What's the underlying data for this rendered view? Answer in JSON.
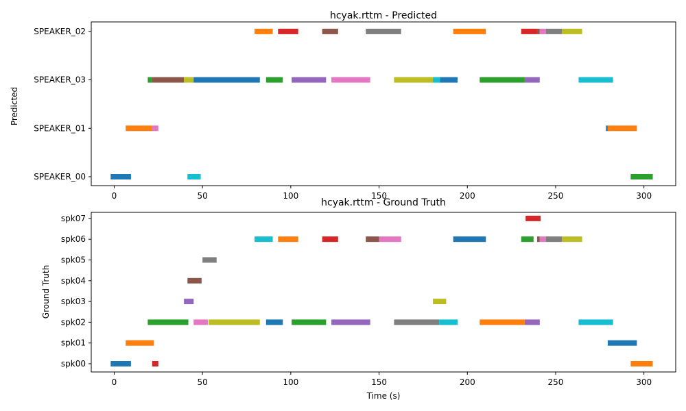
{
  "chart_data": [
    {
      "type": "timeline",
      "title": "hcyak.rttm - Predicted",
      "ylabel": "Predicted",
      "xlabel": "",
      "xlim": [
        -13,
        318
      ],
      "x_ticks": [
        0,
        50,
        100,
        150,
        200,
        250,
        300
      ],
      "rows": [
        "SPEAKER_00",
        "SPEAKER_01",
        "SPEAKER_03",
        "SPEAKER_02"
      ],
      "segments": [
        {
          "row": "SPEAKER_02",
          "start": 79.5,
          "end": 89.8,
          "color": "#ff7f0e"
        },
        {
          "row": "SPEAKER_02",
          "start": 92.8,
          "end": 104.2,
          "color": "#d62728"
        },
        {
          "row": "SPEAKER_02",
          "start": 117.8,
          "end": 126.8,
          "color": "#8c564b"
        },
        {
          "row": "SPEAKER_02",
          "start": 142.5,
          "end": 162.5,
          "color": "#7f7f7f"
        },
        {
          "row": "SPEAKER_02",
          "start": 192.0,
          "end": 210.5,
          "color": "#ff7f0e"
        },
        {
          "row": "SPEAKER_02",
          "start": 230.5,
          "end": 239.5,
          "color": "#d62728"
        },
        {
          "row": "SPEAKER_02",
          "start": 239.5,
          "end": 241.0,
          "color": "#8c564b"
        },
        {
          "row": "SPEAKER_02",
          "start": 241.0,
          "end": 244.5,
          "color": "#e377c2"
        },
        {
          "row": "SPEAKER_02",
          "start": 244.5,
          "end": 253.5,
          "color": "#7f7f7f"
        },
        {
          "row": "SPEAKER_02",
          "start": 253.5,
          "end": 265.0,
          "color": "#bcbd22"
        },
        {
          "row": "SPEAKER_03",
          "start": 19.0,
          "end": 21.5,
          "color": "#2ca02c"
        },
        {
          "row": "SPEAKER_03",
          "start": 21.5,
          "end": 39.5,
          "color": "#8c564b"
        },
        {
          "row": "SPEAKER_03",
          "start": 39.5,
          "end": 45.0,
          "color": "#bcbd22"
        },
        {
          "row": "SPEAKER_03",
          "start": 45.0,
          "end": 82.5,
          "color": "#1f77b4"
        },
        {
          "row": "SPEAKER_03",
          "start": 86.0,
          "end": 95.5,
          "color": "#2ca02c"
        },
        {
          "row": "SPEAKER_03",
          "start": 100.5,
          "end": 120.0,
          "color": "#9467bd"
        },
        {
          "row": "SPEAKER_03",
          "start": 123.0,
          "end": 145.0,
          "color": "#e377c2"
        },
        {
          "row": "SPEAKER_03",
          "start": 158.5,
          "end": 180.5,
          "color": "#bcbd22"
        },
        {
          "row": "SPEAKER_03",
          "start": 180.5,
          "end": 184.5,
          "color": "#17becf"
        },
        {
          "row": "SPEAKER_03",
          "start": 184.5,
          "end": 194.5,
          "color": "#1f77b4"
        },
        {
          "row": "SPEAKER_03",
          "start": 207.0,
          "end": 232.5,
          "color": "#2ca02c"
        },
        {
          "row": "SPEAKER_03",
          "start": 232.5,
          "end": 241.0,
          "color": "#9467bd"
        },
        {
          "row": "SPEAKER_03",
          "start": 263.0,
          "end": 282.5,
          "color": "#17becf"
        },
        {
          "row": "SPEAKER_01",
          "start": 6.5,
          "end": 21.5,
          "color": "#ff7f0e"
        },
        {
          "row": "SPEAKER_01",
          "start": 21.5,
          "end": 25.0,
          "color": "#e377c2"
        },
        {
          "row": "SPEAKER_01",
          "start": 278.5,
          "end": 279.5,
          "color": "#1f77b4"
        },
        {
          "row": "SPEAKER_01",
          "start": 279.5,
          "end": 296.0,
          "color": "#ff7f0e"
        },
        {
          "row": "SPEAKER_00",
          "start": -2.0,
          "end": 9.5,
          "color": "#1f77b4"
        },
        {
          "row": "SPEAKER_00",
          "start": 41.5,
          "end": 49.0,
          "color": "#17becf"
        },
        {
          "row": "SPEAKER_00",
          "start": 292.5,
          "end": 305.0,
          "color": "#2ca02c"
        }
      ]
    },
    {
      "type": "timeline",
      "title": "hcyak.rttm - Ground Truth",
      "ylabel": "Ground Truth",
      "xlabel": "Time (s)",
      "xlim": [
        -13,
        318
      ],
      "x_ticks": [
        0,
        50,
        100,
        150,
        200,
        250,
        300
      ],
      "rows": [
        "spk00",
        "spk01",
        "spk02",
        "spk03",
        "spk04",
        "spk05",
        "spk06",
        "spk07"
      ],
      "segments": [
        {
          "row": "spk07",
          "start": 233.0,
          "end": 241.5,
          "color": "#d62728"
        },
        {
          "row": "spk06",
          "start": 79.5,
          "end": 89.8,
          "color": "#17becf"
        },
        {
          "row": "spk06",
          "start": 92.8,
          "end": 104.2,
          "color": "#ff7f0e"
        },
        {
          "row": "spk06",
          "start": 117.8,
          "end": 126.8,
          "color": "#d62728"
        },
        {
          "row": "spk06",
          "start": 142.5,
          "end": 150.0,
          "color": "#8c564b"
        },
        {
          "row": "spk06",
          "start": 150.0,
          "end": 162.5,
          "color": "#e377c2"
        },
        {
          "row": "spk06",
          "start": 192.0,
          "end": 210.5,
          "color": "#1f77b4"
        },
        {
          "row": "spk06",
          "start": 230.5,
          "end": 237.5,
          "color": "#2ca02c"
        },
        {
          "row": "spk06",
          "start": 239.5,
          "end": 241.0,
          "color": "#8c564b"
        },
        {
          "row": "spk06",
          "start": 241.0,
          "end": 244.5,
          "color": "#e377c2"
        },
        {
          "row": "spk06",
          "start": 244.5,
          "end": 253.5,
          "color": "#7f7f7f"
        },
        {
          "row": "spk06",
          "start": 253.5,
          "end": 265.0,
          "color": "#bcbd22"
        },
        {
          "row": "spk05",
          "start": 50.0,
          "end": 58.0,
          "color": "#7f7f7f"
        },
        {
          "row": "spk04",
          "start": 41.5,
          "end": 49.5,
          "color": "#8c564b"
        },
        {
          "row": "spk03",
          "start": 39.5,
          "end": 45.0,
          "color": "#9467bd"
        },
        {
          "row": "spk03",
          "start": 180.5,
          "end": 188.0,
          "color": "#bcbd22"
        },
        {
          "row": "spk02",
          "start": 19.0,
          "end": 42.0,
          "color": "#2ca02c"
        },
        {
          "row": "spk02",
          "start": 45.0,
          "end": 53.0,
          "color": "#e377c2"
        },
        {
          "row": "spk02",
          "start": 53.5,
          "end": 82.5,
          "color": "#bcbd22"
        },
        {
          "row": "spk02",
          "start": 86.0,
          "end": 95.5,
          "color": "#1f77b4"
        },
        {
          "row": "spk02",
          "start": 100.5,
          "end": 120.0,
          "color": "#2ca02c"
        },
        {
          "row": "spk02",
          "start": 123.0,
          "end": 145.0,
          "color": "#9467bd"
        },
        {
          "row": "spk02",
          "start": 158.5,
          "end": 184.0,
          "color": "#7f7f7f"
        },
        {
          "row": "spk02",
          "start": 184.0,
          "end": 194.5,
          "color": "#17becf"
        },
        {
          "row": "spk02",
          "start": 207.0,
          "end": 232.5,
          "color": "#ff7f0e"
        },
        {
          "row": "spk02",
          "start": 232.5,
          "end": 241.0,
          "color": "#9467bd"
        },
        {
          "row": "spk02",
          "start": 263.0,
          "end": 282.5,
          "color": "#17becf"
        },
        {
          "row": "spk01",
          "start": 6.5,
          "end": 22.5,
          "color": "#ff7f0e"
        },
        {
          "row": "spk01",
          "start": 279.5,
          "end": 296.0,
          "color": "#1f77b4"
        },
        {
          "row": "spk00",
          "start": -2.0,
          "end": 9.5,
          "color": "#1f77b4"
        },
        {
          "row": "spk00",
          "start": 21.5,
          "end": 25.0,
          "color": "#d62728"
        },
        {
          "row": "spk00",
          "start": 292.5,
          "end": 305.0,
          "color": "#ff7f0e"
        }
      ]
    }
  ]
}
